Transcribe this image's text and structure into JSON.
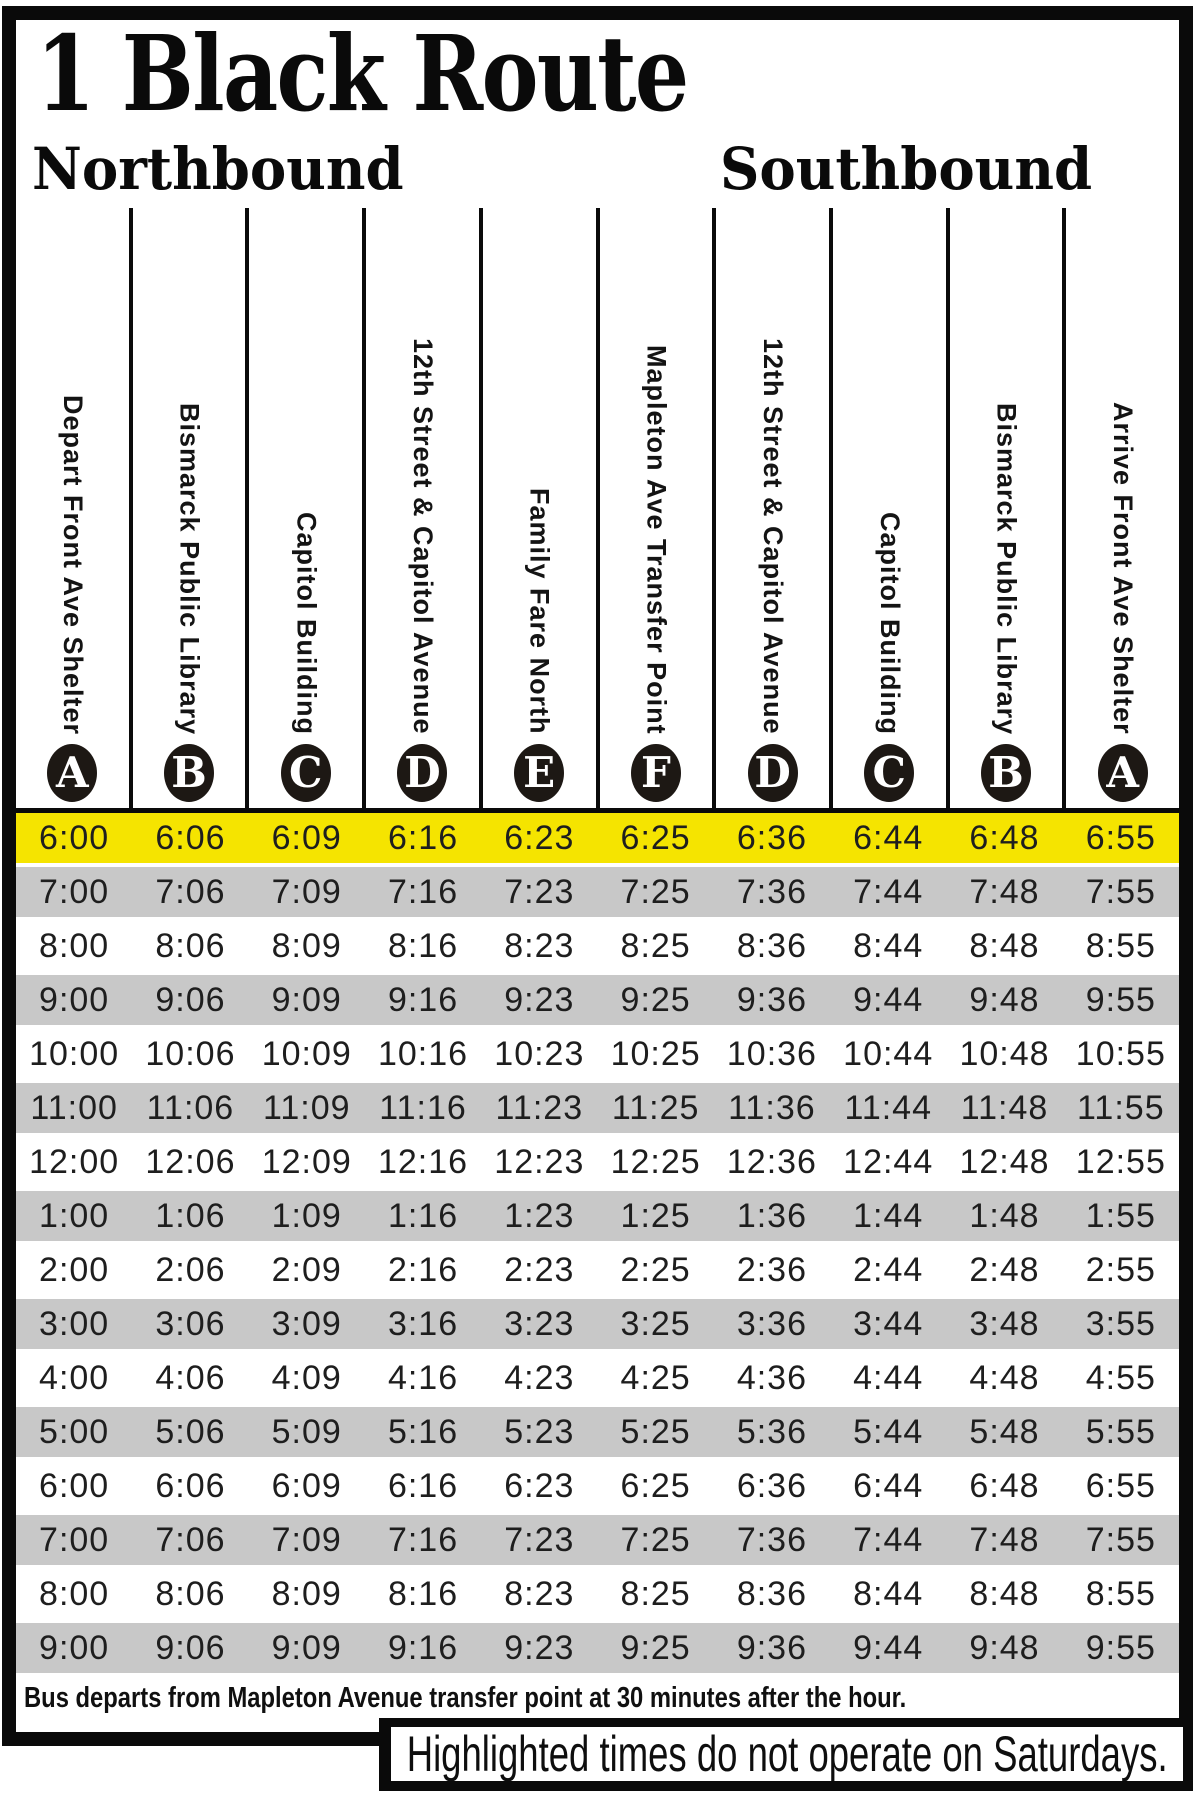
{
  "title": "1 Black Route",
  "directions": {
    "northbound": "Northbound",
    "southbound": "Southbound"
  },
  "columns": [
    {
      "label": "Depart Front Ave Shelter",
      "letter": "A"
    },
    {
      "label": "Bismarck Public Library",
      "letter": "B"
    },
    {
      "label": "Capitol Building",
      "letter": "C"
    },
    {
      "label": "12th Street & Capitol Avenue",
      "letter": "D"
    },
    {
      "label": "Family Fare North",
      "letter": "E"
    },
    {
      "label": "Mapleton Ave Transfer Point",
      "letter": "F"
    },
    {
      "label": "12th Street & Capitol Avenue",
      "letter": "D"
    },
    {
      "label": "Capitol Building",
      "letter": "C"
    },
    {
      "label": "Bismarck Public Library",
      "letter": "B"
    },
    {
      "label": "Arrive Front Ave Shelter",
      "letter": "A"
    }
  ],
  "schedule": {
    "rows": [
      {
        "highlight": true,
        "times": [
          "6:00",
          "6:06",
          "6:09",
          "6:16",
          "6:23",
          "6:25",
          "6:36",
          "6:44",
          "6:48",
          "6:55"
        ]
      },
      {
        "highlight": false,
        "times": [
          "7:00",
          "7:06",
          "7:09",
          "7:16",
          "7:23",
          "7:25",
          "7:36",
          "7:44",
          "7:48",
          "7:55"
        ]
      },
      {
        "highlight": false,
        "times": [
          "8:00",
          "8:06",
          "8:09",
          "8:16",
          "8:23",
          "8:25",
          "8:36",
          "8:44",
          "8:48",
          "8:55"
        ]
      },
      {
        "highlight": false,
        "times": [
          "9:00",
          "9:06",
          "9:09",
          "9:16",
          "9:23",
          "9:25",
          "9:36",
          "9:44",
          "9:48",
          "9:55"
        ]
      },
      {
        "highlight": false,
        "times": [
          "10:00",
          "10:06",
          "10:09",
          "10:16",
          "10:23",
          "10:25",
          "10:36",
          "10:44",
          "10:48",
          "10:55"
        ]
      },
      {
        "highlight": false,
        "times": [
          "11:00",
          "11:06",
          "11:09",
          "11:16",
          "11:23",
          "11:25",
          "11:36",
          "11:44",
          "11:48",
          "11:55"
        ]
      },
      {
        "highlight": false,
        "times": [
          "12:00",
          "12:06",
          "12:09",
          "12:16",
          "12:23",
          "12:25",
          "12:36",
          "12:44",
          "12:48",
          "12:55"
        ]
      },
      {
        "highlight": false,
        "times": [
          "1:00",
          "1:06",
          "1:09",
          "1:16",
          "1:23",
          "1:25",
          "1:36",
          "1:44",
          "1:48",
          "1:55"
        ]
      },
      {
        "highlight": false,
        "times": [
          "2:00",
          "2:06",
          "2:09",
          "2:16",
          "2:23",
          "2:25",
          "2:36",
          "2:44",
          "2:48",
          "2:55"
        ]
      },
      {
        "highlight": false,
        "times": [
          "3:00",
          "3:06",
          "3:09",
          "3:16",
          "3:23",
          "3:25",
          "3:36",
          "3:44",
          "3:48",
          "3:55"
        ]
      },
      {
        "highlight": false,
        "times": [
          "4:00",
          "4:06",
          "4:09",
          "4:16",
          "4:23",
          "4:25",
          "4:36",
          "4:44",
          "4:48",
          "4:55"
        ]
      },
      {
        "highlight": false,
        "times": [
          "5:00",
          "5:06",
          "5:09",
          "5:16",
          "5:23",
          "5:25",
          "5:36",
          "5:44",
          "5:48",
          "5:55"
        ]
      },
      {
        "highlight": false,
        "times": [
          "6:00",
          "6:06",
          "6:09",
          "6:16",
          "6:23",
          "6:25",
          "6:36",
          "6:44",
          "6:48",
          "6:55"
        ]
      },
      {
        "highlight": false,
        "times": [
          "7:00",
          "7:06",
          "7:09",
          "7:16",
          "7:23",
          "7:25",
          "7:36",
          "7:44",
          "7:48",
          "7:55"
        ]
      },
      {
        "highlight": false,
        "times": [
          "8:00",
          "8:06",
          "8:09",
          "8:16",
          "8:23",
          "8:25",
          "8:36",
          "8:44",
          "8:48",
          "8:55"
        ]
      },
      {
        "highlight": false,
        "times": [
          "9:00",
          "9:06",
          "9:09",
          "9:16",
          "9:23",
          "9:25",
          "9:36",
          "9:44",
          "9:48",
          "9:55"
        ]
      }
    ]
  },
  "footnote": "Bus departs from Mapleton Avenue transfer point at 30 minutes after the hour.",
  "legend": "Highlighted times do not operate on Saturdays.",
  "colors": {
    "ink": "#0a0a0a",
    "badge": "#1d1814",
    "highlight": "#f5e400",
    "alt_row": "#c8c8c8"
  }
}
